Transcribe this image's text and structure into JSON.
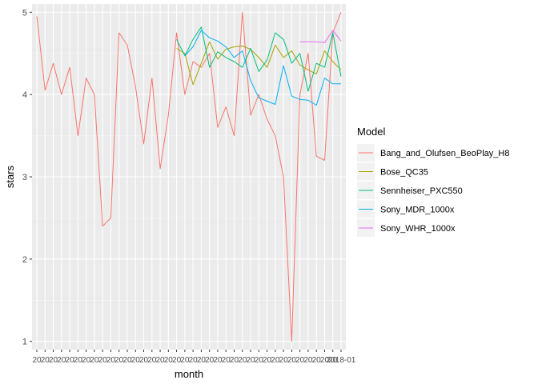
{
  "chart_data": {
    "type": "line",
    "title": "",
    "xlabel": "month",
    "ylabel": "stars",
    "ylim": [
      0.9,
      5.1
    ],
    "yticks": [
      1,
      2,
      3,
      4,
      5
    ],
    "grid": true,
    "legend": {
      "title": "Model",
      "placement": "right"
    },
    "x_index_range": [
      1,
      38
    ],
    "x_tick_labels": [
      "20",
      "20",
      "20",
      "20",
      "20",
      "20",
      "20",
      "20",
      "20",
      "20",
      "20",
      "20",
      "20",
      "20",
      "20",
      "20",
      "20",
      "20",
      "20",
      "20",
      "20",
      "20",
      "20",
      "20",
      "20",
      "20",
      "20",
      "20",
      "20",
      "20",
      "20",
      "20",
      "20",
      "20",
      "20",
      "20",
      "20",
      "2018-01"
    ],
    "series": [
      {
        "name": "Bang_and_Olufsen_BeoPlay_H8",
        "color": "#F8766D",
        "x": [
          1,
          2,
          3,
          4,
          5,
          6,
          7,
          8,
          9,
          10,
          11,
          12,
          13,
          14,
          15,
          16,
          17,
          18,
          19,
          20,
          21,
          22,
          23,
          24,
          25,
          26,
          27,
          28,
          29,
          30,
          31,
          32,
          33,
          34,
          35,
          36,
          37,
          38
        ],
        "y": [
          4.95,
          4.05,
          4.38,
          4.0,
          4.33,
          3.5,
          4.2,
          4.0,
          2.4,
          2.5,
          4.75,
          4.6,
          4.1,
          3.4,
          4.2,
          3.1,
          3.75,
          4.75,
          4.0,
          4.4,
          4.33,
          4.5,
          3.6,
          3.85,
          3.5,
          5.0,
          3.75,
          4.0,
          3.7,
          3.5,
          3.0,
          1.0,
          4.0,
          4.5,
          3.25,
          3.2,
          4.75,
          5.0
        ]
      },
      {
        "name": "Bose_QC35",
        "color": "#A3A500",
        "x": [
          18,
          19,
          20,
          21,
          22,
          23,
          24,
          25,
          26,
          27,
          28,
          29,
          30,
          31,
          32,
          33,
          34,
          35,
          36,
          37,
          38
        ],
        "y": [
          4.56,
          4.5,
          4.12,
          4.38,
          4.64,
          4.43,
          4.55,
          4.58,
          4.59,
          4.55,
          4.45,
          4.33,
          4.6,
          4.45,
          4.53,
          4.36,
          4.3,
          4.25,
          4.53,
          4.4,
          4.3
        ]
      },
      {
        "name": "Sennheiser_PXC550",
        "color": "#00BF7D",
        "x": [
          18,
          19,
          20,
          21,
          22,
          23,
          24,
          25,
          26,
          27,
          28,
          29,
          30,
          31,
          32,
          33,
          34,
          35,
          36,
          37,
          38
        ],
        "y": [
          4.67,
          4.47,
          4.67,
          4.82,
          4.33,
          4.52,
          4.45,
          4.4,
          4.33,
          4.56,
          4.28,
          4.42,
          4.75,
          4.67,
          4.38,
          4.5,
          4.04,
          4.38,
          4.33,
          4.75,
          4.22
        ]
      },
      {
        "name": "Sony_MDR_1000x",
        "color": "#00B0F6",
        "x": [
          19,
          20,
          21,
          22,
          23,
          24,
          25,
          26,
          27,
          28,
          29,
          30,
          31,
          32,
          33,
          34,
          35,
          36,
          37,
          38
        ],
        "y": [
          4.47,
          4.58,
          4.78,
          4.69,
          4.65,
          4.58,
          4.45,
          4.53,
          4.17,
          3.96,
          3.92,
          3.88,
          4.35,
          3.98,
          3.94,
          3.93,
          3.87,
          4.2,
          4.13,
          4.13
        ]
      },
      {
        "name": "Sony_WHR_1000x",
        "color": "#E76BF3",
        "x": [
          33,
          34,
          35,
          36,
          37,
          38
        ],
        "y": [
          4.64,
          4.64,
          4.64,
          4.63,
          4.78,
          4.65
        ]
      }
    ]
  }
}
